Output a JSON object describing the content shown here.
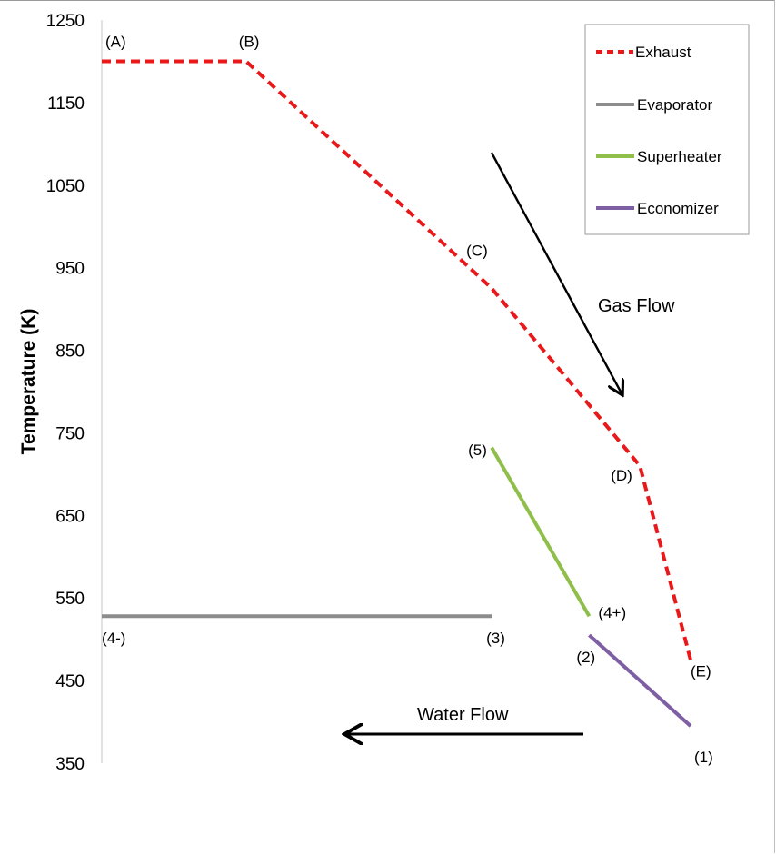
{
  "chart_data": {
    "type": "line",
    "ylabel": "Temperature (K)",
    "ylim": [
      350,
      1250
    ],
    "yticks": [
      1250,
      1150,
      1050,
      950,
      850,
      750,
      650,
      550,
      450,
      350
    ],
    "x_axis_shown": false,
    "grid": false,
    "legend_position": "top-right",
    "series": [
      {
        "name": "Exhaust",
        "color": "#e8191a",
        "style": "dashed",
        "points": [
          {
            "x": 0,
            "y": 1200,
            "label": "(A)"
          },
          {
            "x": 0.37,
            "y": 1200,
            "label": "(B)"
          },
          {
            "x": 1.0,
            "y": 925,
            "label": "(C)"
          },
          {
            "x": 1.38,
            "y": 710,
            "label": "(D)"
          },
          {
            "x": 1.51,
            "y": 475,
            "label": "(E)"
          }
        ]
      },
      {
        "name": "Evaporator",
        "color": "#8c8c8c",
        "style": "solid",
        "points": [
          {
            "x": 0,
            "y": 528,
            "label": "(4-)"
          },
          {
            "x": 1.0,
            "y": 528,
            "label": "(3)"
          }
        ]
      },
      {
        "name": "Superheater",
        "color": "#8fbf4a",
        "style": "solid",
        "points": [
          {
            "x": 1.0,
            "y": 732,
            "label": "(5)"
          },
          {
            "x": 1.25,
            "y": 528,
            "label": "(4+)"
          }
        ]
      },
      {
        "name": "Economizer",
        "color": "#7e5fa4",
        "style": "solid",
        "points": [
          {
            "x": 1.25,
            "y": 505,
            "label": "(2)"
          },
          {
            "x": 1.51,
            "y": 395,
            "label": "(1)"
          }
        ]
      }
    ],
    "annotations": [
      {
        "text": "Gas Flow",
        "arrow": "down-right"
      },
      {
        "text": "Water Flow",
        "arrow": "left"
      }
    ]
  }
}
